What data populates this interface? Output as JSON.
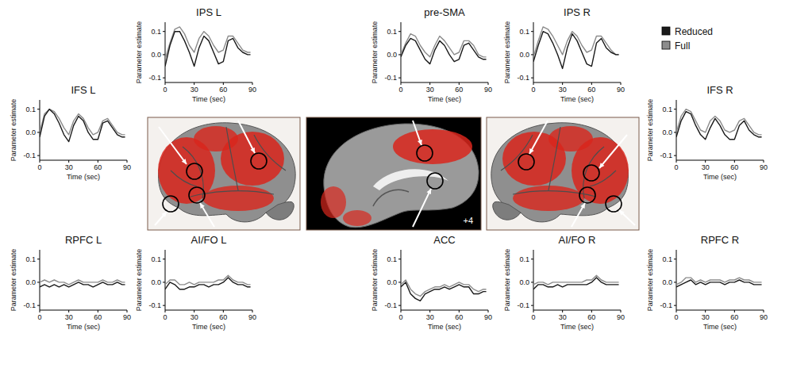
{
  "chart_data": [
    {
      "type": "line",
      "title": "IFS L",
      "x_label": "Time (sec)",
      "y_label": "Parameter estimate",
      "x": [
        0,
        5,
        10,
        15,
        20,
        25,
        30,
        35,
        40,
        45,
        50,
        55,
        60,
        65,
        70,
        75,
        80,
        85,
        88
      ],
      "xlim": [
        0,
        90
      ],
      "xticks": [
        0,
        30,
        60,
        90
      ],
      "ylim": [
        -0.12,
        0.14
      ],
      "yticks": [
        {
          "value": -0.1,
          "label": "-0.1"
        },
        {
          "value": 0,
          "label": "0.0"
        },
        {
          "value": 0.1,
          "label": "0.1"
        }
      ],
      "grid": false,
      "legend": "right",
      "series": [
        {
          "name": "Reduced",
          "color": "#1a1a1a",
          "values": [
            -0.02,
            0.07,
            0.1,
            0.08,
            0.04,
            -0.01,
            -0.04,
            0.03,
            0.07,
            0.05,
            0,
            -0.03,
            -0.03,
            0.04,
            0.05,
            0.02,
            -0.01,
            -0.02,
            -0.02
          ]
        },
        {
          "name": "Full",
          "color": "#8c8c8c",
          "values": [
            0,
            0.08,
            0.1,
            0.09,
            0.06,
            0.02,
            -0.01,
            0.05,
            0.08,
            0.06,
            0.02,
            -0.01,
            0,
            0.05,
            0.06,
            0.03,
            0,
            -0.01,
            -0.01
          ]
        }
      ]
    },
    {
      "type": "line",
      "title": "IPS L",
      "x_label": "Time (sec)",
      "y_label": "Parameter estimate",
      "x": [
        0,
        5,
        10,
        15,
        20,
        25,
        30,
        35,
        40,
        45,
        50,
        55,
        60,
        65,
        70,
        75,
        80,
        85,
        88
      ],
      "xlim": [
        0,
        90
      ],
      "xticks": [
        0,
        30,
        60,
        90
      ],
      "ylim": [
        -0.12,
        0.14
      ],
      "yticks": [
        {
          "value": -0.1,
          "label": "-0.1"
        },
        {
          "value": 0,
          "label": "0.0"
        },
        {
          "value": 0.1,
          "label": "0.1"
        }
      ],
      "grid": false,
      "series": [
        {
          "name": "Reduced",
          "color": "#1a1a1a",
          "values": [
            -0.05,
            0.04,
            0.1,
            0.1,
            0.06,
            0.01,
            -0.05,
            0.03,
            0.08,
            0.06,
            0.01,
            -0.04,
            -0.03,
            0.06,
            0.07,
            0.03,
            0.01,
            0,
            0
          ]
        },
        {
          "name": "Full",
          "color": "#8c8c8c",
          "values": [
            -0.02,
            0.05,
            0.11,
            0.12,
            0.09,
            0.04,
            0.01,
            0.07,
            0.1,
            0.08,
            0.04,
            0.01,
            0.02,
            0.08,
            0.08,
            0.05,
            0.02,
            0.01,
            0.01
          ]
        }
      ]
    },
    {
      "type": "line",
      "title": "pre-SMA",
      "x_label": "Time (sec)",
      "y_label": "Parameter estimate",
      "x": [
        0,
        5,
        10,
        15,
        20,
        25,
        30,
        35,
        40,
        45,
        50,
        55,
        60,
        65,
        70,
        75,
        80,
        85,
        88
      ],
      "xlim": [
        0,
        90
      ],
      "xticks": [
        0,
        30,
        60,
        90
      ],
      "ylim": [
        -0.12,
        0.14
      ],
      "yticks": [
        {
          "value": -0.1,
          "label": "-0.1"
        },
        {
          "value": 0,
          "label": "0.0"
        },
        {
          "value": 0.1,
          "label": "0.1"
        }
      ],
      "grid": false,
      "series": [
        {
          "name": "Reduced",
          "color": "#1a1a1a",
          "values": [
            -0.01,
            0.04,
            0.07,
            0.06,
            0.02,
            -0.02,
            -0.04,
            0.02,
            0.06,
            0.04,
            0,
            -0.03,
            -0.02,
            0.04,
            0.05,
            0.02,
            -0.01,
            -0.02,
            -0.02
          ]
        },
        {
          "name": "Full",
          "color": "#8c8c8c",
          "values": [
            0,
            0.05,
            0.09,
            0.08,
            0.04,
            0.01,
            -0.01,
            0.04,
            0.08,
            0.06,
            0.03,
            0,
            0.01,
            0.06,
            0.06,
            0.04,
            0,
            -0.01,
            -0.01
          ]
        }
      ]
    },
    {
      "type": "line",
      "title": "IPS R",
      "x_label": "Time (sec)",
      "y_label": "Parameter estimate",
      "x": [
        0,
        5,
        10,
        15,
        20,
        25,
        30,
        35,
        40,
        45,
        50,
        55,
        60,
        65,
        70,
        75,
        80,
        85,
        88
      ],
      "xlim": [
        0,
        90
      ],
      "xticks": [
        0,
        30,
        60,
        90
      ],
      "ylim": [
        -0.12,
        0.14
      ],
      "yticks": [
        {
          "value": -0.1,
          "label": "-0.1"
        },
        {
          "value": 0,
          "label": "0.0"
        },
        {
          "value": 0.1,
          "label": "0.1"
        }
      ],
      "grid": false,
      "series": [
        {
          "name": "Reduced",
          "color": "#1a1a1a",
          "values": [
            -0.03,
            0.04,
            0.1,
            0.09,
            0.05,
            0,
            -0.06,
            0.03,
            0.09,
            0.06,
            0.01,
            -0.04,
            -0.05,
            0.05,
            0.07,
            0.03,
            0.01,
            0,
            0
          ]
        },
        {
          "name": "Full",
          "color": "#8c8c8c",
          "values": [
            -0.01,
            0.06,
            0.12,
            0.11,
            0.08,
            0.04,
            0,
            0.06,
            0.1,
            0.08,
            0.04,
            0.01,
            0.02,
            0.08,
            0.08,
            0.05,
            0.02,
            0,
            0
          ]
        }
      ]
    },
    {
      "type": "line",
      "title": "IFS R",
      "x_label": "Time (sec)",
      "y_label": "Parameter estimate",
      "x": [
        0,
        5,
        10,
        15,
        20,
        25,
        30,
        35,
        40,
        45,
        50,
        55,
        60,
        65,
        70,
        75,
        80,
        85,
        88
      ],
      "xlim": [
        0,
        90
      ],
      "xticks": [
        0,
        30,
        60,
        90
      ],
      "ylim": [
        -0.12,
        0.14
      ],
      "yticks": [
        {
          "value": -0.1,
          "label": "-0.1"
        },
        {
          "value": 0,
          "label": "0.0"
        },
        {
          "value": 0.1,
          "label": "0.1"
        }
      ],
      "grid": false,
      "series": [
        {
          "name": "Reduced",
          "color": "#1a1a1a",
          "values": [
            -0.02,
            0.05,
            0.09,
            0.08,
            0.03,
            -0.01,
            -0.03,
            0.02,
            0.06,
            0.03,
            -0.01,
            -0.03,
            -0.03,
            0.03,
            0.05,
            0.01,
            -0.01,
            -0.02,
            -0.02
          ]
        },
        {
          "name": "Full",
          "color": "#8c8c8c",
          "values": [
            0,
            0.07,
            0.1,
            0.09,
            0.05,
            0.01,
            0,
            0.05,
            0.07,
            0.05,
            0.01,
            0,
            0.01,
            0.05,
            0.06,
            0.03,
            0,
            -0.01,
            -0.01
          ]
        }
      ]
    },
    {
      "type": "line",
      "title": "RPFC L",
      "x_label": "Time (sec)",
      "y_label": "Parameter estimate",
      "x": [
        0,
        5,
        10,
        15,
        20,
        25,
        30,
        35,
        40,
        45,
        50,
        55,
        60,
        65,
        70,
        75,
        80,
        85,
        88
      ],
      "xlim": [
        0,
        90
      ],
      "xticks": [
        0,
        30,
        60,
        90
      ],
      "ylim": [
        -0.12,
        0.14
      ],
      "yticks": [
        {
          "value": -0.1,
          "label": "-0.1"
        },
        {
          "value": 0,
          "label": "0.0"
        },
        {
          "value": 0.1,
          "label": "0.1"
        }
      ],
      "grid": false,
      "series": [
        {
          "name": "Reduced",
          "color": "#1a1a1a",
          "values": [
            -0.02,
            -0.01,
            -0.02,
            -0.01,
            -0.02,
            -0.01,
            -0.02,
            -0.01,
            0,
            -0.01,
            -0.01,
            -0.02,
            -0.01,
            0,
            -0.01,
            -0.01,
            0,
            -0.01,
            -0.01
          ]
        },
        {
          "name": "Full",
          "color": "#8c8c8c",
          "values": [
            0,
            0.01,
            0,
            0.01,
            0,
            0,
            -0.01,
            0,
            0.01,
            0,
            0,
            0,
            0,
            0.01,
            0,
            0,
            0.01,
            0,
            0
          ]
        }
      ]
    },
    {
      "type": "line",
      "title": "AI/FO L",
      "x_label": "Time (sec)",
      "y_label": "Parameter estimate",
      "x": [
        0,
        5,
        10,
        15,
        20,
        25,
        30,
        35,
        40,
        45,
        50,
        55,
        60,
        65,
        70,
        75,
        80,
        85,
        88
      ],
      "xlim": [
        0,
        90
      ],
      "xticks": [
        0,
        30,
        60,
        90
      ],
      "ylim": [
        -0.12,
        0.14
      ],
      "yticks": [
        {
          "value": -0.1,
          "label": "-0.1"
        },
        {
          "value": 0,
          "label": "0.0"
        },
        {
          "value": 0.1,
          "label": "0.1"
        }
      ],
      "grid": false,
      "series": [
        {
          "name": "Reduced",
          "color": "#1a1a1a",
          "values": [
            -0.03,
            0,
            -0.01,
            -0.03,
            -0.03,
            -0.02,
            -0.02,
            -0.01,
            -0.01,
            -0.02,
            -0.01,
            -0.01,
            0,
            0.02,
            0,
            -0.01,
            -0.01,
            -0.02,
            -0.02
          ]
        },
        {
          "name": "Full",
          "color": "#8c8c8c",
          "values": [
            -0.01,
            0.01,
            0.01,
            -0.01,
            -0.01,
            0,
            -0.01,
            0,
            0,
            0,
            0,
            0.01,
            0.01,
            0.03,
            0.01,
            0,
            0,
            -0.01,
            -0.01
          ]
        }
      ]
    },
    {
      "type": "line",
      "title": "ACC",
      "x_label": "Time (sec)",
      "y_label": "Parameter estimate",
      "x": [
        0,
        5,
        10,
        15,
        20,
        25,
        30,
        35,
        40,
        45,
        50,
        55,
        60,
        65,
        70,
        75,
        80,
        85,
        88
      ],
      "xlim": [
        0,
        90
      ],
      "xticks": [
        0,
        30,
        60,
        90
      ],
      "ylim": [
        -0.12,
        0.14
      ],
      "yticks": [
        {
          "value": -0.1,
          "label": "-0.1"
        },
        {
          "value": 0,
          "label": "0.0"
        },
        {
          "value": 0.1,
          "label": "0.1"
        }
      ],
      "grid": false,
      "series": [
        {
          "name": "Reduced",
          "color": "#1a1a1a",
          "values": [
            -0.02,
            0,
            -0.05,
            -0.07,
            -0.08,
            -0.05,
            -0.04,
            -0.03,
            -0.03,
            -0.02,
            -0.03,
            -0.02,
            -0.01,
            -0.02,
            -0.02,
            -0.05,
            -0.05,
            -0.04,
            -0.04
          ]
        },
        {
          "name": "Full",
          "color": "#8c8c8c",
          "values": [
            -0.01,
            0.01,
            -0.03,
            -0.05,
            -0.06,
            -0.04,
            -0.03,
            -0.02,
            -0.02,
            -0.01,
            -0.02,
            -0.01,
            0,
            -0.01,
            -0.01,
            -0.03,
            -0.04,
            -0.03,
            -0.03
          ]
        }
      ]
    },
    {
      "type": "line",
      "title": "AI/FO R",
      "x_label": "Time (sec)",
      "y_label": "Parameter estimate",
      "x": [
        0,
        5,
        10,
        15,
        20,
        25,
        30,
        35,
        40,
        45,
        50,
        55,
        60,
        65,
        70,
        75,
        80,
        85,
        88
      ],
      "xlim": [
        0,
        90
      ],
      "xticks": [
        0,
        30,
        60,
        90
      ],
      "ylim": [
        -0.12,
        0.14
      ],
      "yticks": [
        {
          "value": -0.1,
          "label": "-0.1"
        },
        {
          "value": 0,
          "label": "0.0"
        },
        {
          "value": 0.1,
          "label": "0.1"
        }
      ],
      "grid": false,
      "series": [
        {
          "name": "Reduced",
          "color": "#1a1a1a",
          "values": [
            -0.03,
            -0.01,
            -0.01,
            -0.02,
            -0.02,
            -0.01,
            -0.02,
            -0.01,
            -0.01,
            -0.01,
            -0.01,
            -0.01,
            0,
            0.02,
            0,
            -0.01,
            -0.01,
            -0.01,
            -0.01
          ]
        },
        {
          "name": "Full",
          "color": "#8c8c8c",
          "values": [
            -0.01,
            0,
            0,
            -0.01,
            0,
            0,
            0,
            0,
            0,
            0,
            0,
            0.01,
            0.01,
            0.03,
            0.01,
            0,
            0,
            0,
            0
          ]
        }
      ]
    },
    {
      "type": "line",
      "title": "RPFC R",
      "x_label": "Time (sec)",
      "y_label": "Parameter estimate",
      "x": [
        0,
        5,
        10,
        15,
        20,
        25,
        30,
        35,
        40,
        45,
        50,
        55,
        60,
        65,
        70,
        75,
        80,
        85,
        88
      ],
      "xlim": [
        0,
        90
      ],
      "xticks": [
        0,
        30,
        60,
        90
      ],
      "ylim": [
        -0.12,
        0.14
      ],
      "yticks": [
        {
          "value": -0.1,
          "label": "-0.1"
        },
        {
          "value": 0,
          "label": "0.0"
        },
        {
          "value": 0.1,
          "label": "0.1"
        }
      ],
      "grid": false,
      "series": [
        {
          "name": "Reduced",
          "color": "#1a1a1a",
          "values": [
            -0.02,
            -0.01,
            0,
            0.01,
            -0.01,
            0,
            -0.01,
            0,
            0,
            0,
            -0.01,
            0,
            0,
            0.01,
            0,
            0,
            -0.01,
            -0.01,
            -0.01
          ]
        },
        {
          "name": "Full",
          "color": "#8c8c8c",
          "values": [
            -0.01,
            0,
            0.02,
            0.02,
            0,
            0.01,
            0,
            0.01,
            0.01,
            0.01,
            0,
            0.01,
            0.01,
            0.02,
            0.01,
            0.01,
            0,
            0,
            0
          ]
        }
      ]
    }
  ],
  "image_label": "+4"
}
